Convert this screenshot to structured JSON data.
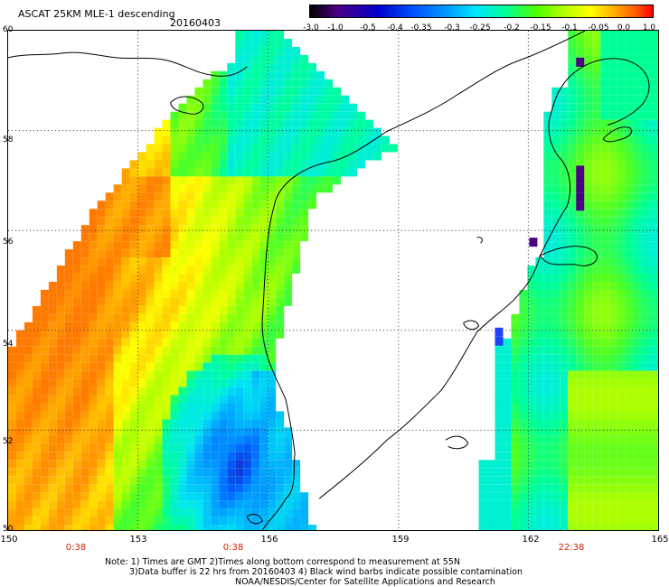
{
  "header": {
    "title": "ASCAT 25KM MLE-1 descending",
    "date": "20160403"
  },
  "colorbar": {
    "labels": [
      "-3.0",
      "-1.0",
      "-0.5",
      "-0.4",
      "-0.35",
      "-0.3",
      "-0.25",
      "-0.2",
      "-0.15",
      "-0.1",
      "-0.05",
      "0.0",
      "1.0"
    ],
    "colors": [
      "#000000",
      "#4b0082",
      "#0000cd",
      "#0050ff",
      "#009bff",
      "#00e5ff",
      "#00ff9a",
      "#4cff00",
      "#b4ff00",
      "#ffff00",
      "#ffaa00",
      "#ff5a00",
      "#ff0000"
    ]
  },
  "map": {
    "lat_labels": [
      "60",
      "58",
      "56",
      "54",
      "52",
      "50"
    ],
    "lon_labels": [
      "150",
      "153",
      "156",
      "159",
      "162",
      "165"
    ],
    "time_labels": [
      "0:38",
      "0:38",
      "22:38"
    ],
    "lat_range": [
      50,
      60
    ],
    "lon_range": [
      150,
      165
    ]
  },
  "notes": {
    "line1": "Note: 1) Times are GMT 2)Times along bottom correspond to measurement at 55N",
    "line2": "3)Data buffer is 22 hrs from 20160403 4) Black wind barbs indicate possible contamination",
    "line3": "NOAA/NESDIS/Center for Satellite Applications and Research"
  }
}
